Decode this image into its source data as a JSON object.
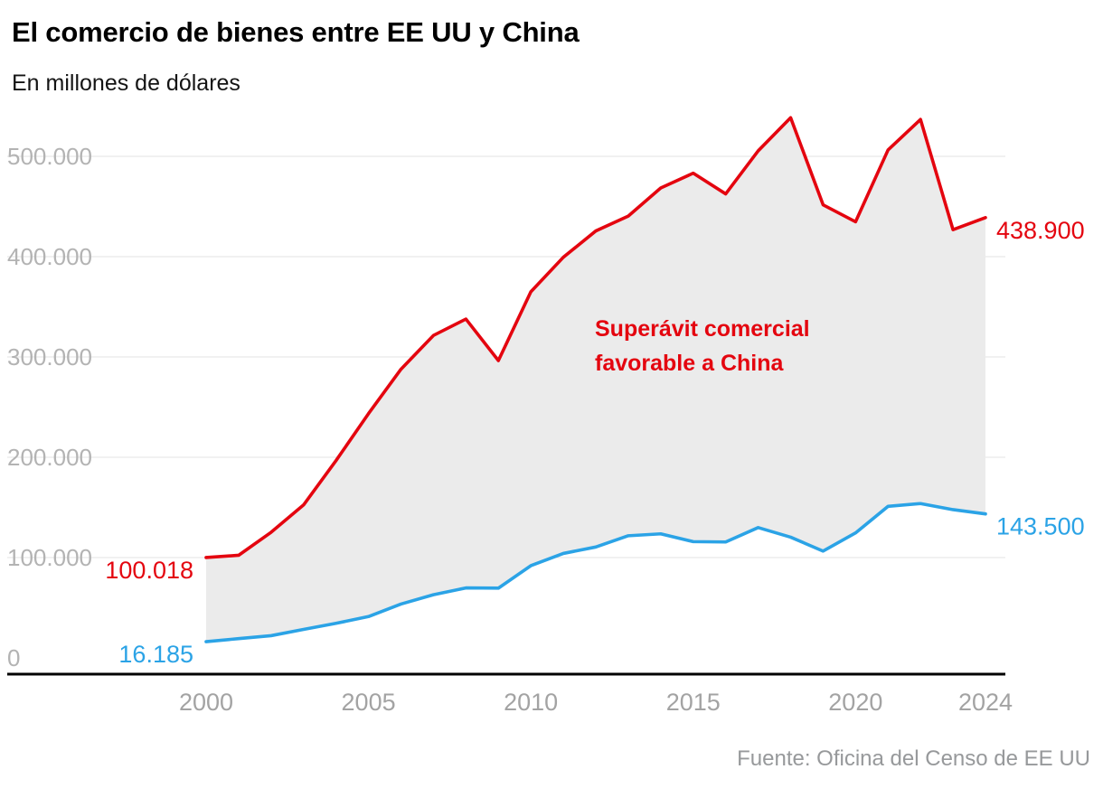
{
  "header": {
    "title": "El comercio de bienes entre EE UU y China",
    "subtitle": "En millones de dólares"
  },
  "footer": {
    "source": "Fuente: Oficina del Censo de EE UU"
  },
  "chart_data": {
    "type": "line",
    "title": "El comercio de bienes entre EE UU y China",
    "subtitle": "En millones de dólares",
    "x": [
      2000,
      2001,
      2002,
      2003,
      2004,
      2005,
      2006,
      2007,
      2008,
      2009,
      2010,
      2011,
      2012,
      2013,
      2014,
      2015,
      2016,
      2017,
      2018,
      2019,
      2020,
      2021,
      2022,
      2023,
      2024
    ],
    "series": [
      {
        "id": "linea-roja",
        "color": "#e4050f",
        "values": [
          100018,
          102278,
          125193,
          152436,
          196682,
          243470,
          287774,
          321443,
          337773,
          296374,
          364953,
          399371,
          425619,
          440430,
          468475,
          483202,
          462542,
          505470,
          538514,
          451651,
          434749,
          506367,
          536754,
          426885,
          438900
        ],
        "label_start": "100.018",
        "label_end": "438.900"
      },
      {
        "id": "linea-azul",
        "color": "#2ba3e6",
        "values": [
          16185,
          19182,
          22128,
          28368,
          34428,
          41192,
          53673,
          62937,
          69733,
          69497,
          91911,
          104122,
          110517,
          121746,
          123657,
          115873,
          115546,
          129894,
          120341,
          106448,
          124582,
          151065,
          153838,
          147777,
          143500
        ],
        "label_start": "16.185",
        "label_end": "143.500"
      }
    ],
    "annotation": {
      "lines": [
        "Superávit comercial",
        "favorable a China"
      ],
      "color": "#e4050f"
    },
    "y_ticks": [
      {
        "value": 0,
        "label": "0"
      },
      {
        "value": 100000,
        "label": "100.000"
      },
      {
        "value": 200000,
        "label": "200.000"
      },
      {
        "value": 300000,
        "label": "300.000"
      },
      {
        "value": 400000,
        "label": "400.000"
      },
      {
        "value": 500000,
        "label": "500.000"
      }
    ],
    "x_ticks": [
      2000,
      2005,
      2010,
      2015,
      2020,
      2024
    ],
    "ylim": [
      0,
      500000
    ],
    "grid": true,
    "legend": "none",
    "style": {
      "grid_color": "#e3e3e3",
      "tick_color_y": "#b3b3b3",
      "tick_color_x": "#a3a3a3",
      "fill_between": "#ebebeb",
      "axis_color": "#000000"
    }
  }
}
